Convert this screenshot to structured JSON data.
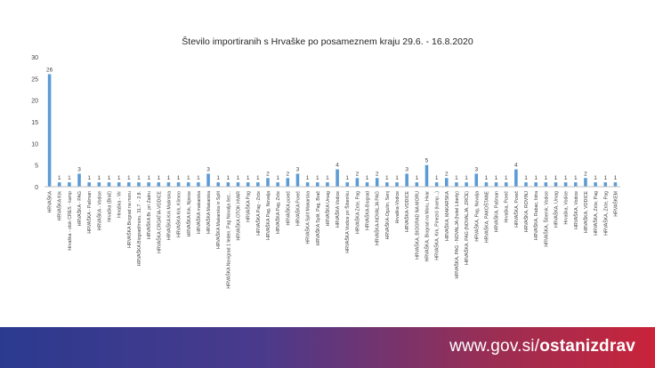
{
  "chart_data": {
    "type": "bar",
    "title": "Število importiranih s Hrvaške po posameznem kraju 29.6. - 16.8.2020",
    "xlabel": "",
    "ylabel": "",
    "ylim": [
      0,
      30
    ],
    "yticks": [
      0,
      5,
      10,
      15,
      20,
      25,
      30
    ],
    "grid": false,
    "legend": "none",
    "bar_color": "#5b9bd5",
    "categories": [
      "HRVAŠKA",
      "HRVAŠKA Krk",
      "Hrvaška - otok CRES - kamp",
      "HRVAŠKA - PAG",
      "HRVAŠKA - Pašman",
      "HRVAŠKA - Vodice",
      "Hrvaška (Brač)",
      "Hrvaška - Vir",
      "HRVAŠKA Biograd na moru",
      "HRVAŠKA Biograd/moru, 31.7. - 2.8.",
      "HRVAŠKA Br. pri Zadru",
      "HRVAŠKA CROATIA-VODICE",
      "HRVAŠKA Krk Malinska",
      "HRVAŠKA Krk, Klimno",
      "HRVAŠKA Krk, Njivice",
      "HRVAŠKA makarska",
      "HRVAŠKA Makarska",
      "HRVAŠKA Makarska in Split",
      "HRVAŠKA Novigrad 1 teden, Pag Novalja čez...",
      "HRVAŠKA OTOK HVAR",
      "HRVAŠKA Pag",
      "HRVAŠKA Pag - Zrće",
      "HRVAŠKA Pag, Novalja",
      "HRVAŠKA Pag, Zrće",
      "HRVAŠKA poreč",
      "HRVAŠKA Poreč",
      "HRVAŠKA Split Makarska",
      "HRVAŠKA Split, Pag, Brač",
      "HRVAŠKA Umag",
      "HRVAŠKA Vodice",
      "HRVAŠKA Vodice pri Šibeniku",
      "HRVAŠKA Zrće, Pag",
      "HRVAŠKA-Biograd",
      "HRVAŠKA-NOVALJA PAG",
      "HRVAŠKA-Ogulin, Senj",
      "Hrvaška-Vodice",
      "HRVAŠKA-VODICE",
      "HRVAŠKA, BIOGRAD NA MORU",
      "HRVAŠKA, Biograd na Moru, Hvar",
      "HRVAŠKA, Krk, Pinezići (kamp...)",
      "HRVAŠKA, MAKARSKA",
      "HRVAŠKA, PAG - NOVALJA (hotel Liberty)",
      "HRVAŠKA, PAG (NOVALJA, ZRĆE)",
      "HRVAŠKA, Pag, Novalja",
      "HRVAŠKA, PAKOŠTANE",
      "HRVAŠKA, Pašman",
      "Hrvaška, Poreč",
      "HRVAŠKA, Poreč",
      "HRVAŠKA, ROVINJ",
      "HRVAŠKA, Rabac, Istra",
      "HRVAŠKA, Šibenik, Vodice",
      "HRVAŠKA, Umag",
      "Hrvaška, Vodice",
      "HRVAŠKA, Vodice",
      "HRVAŠKA, VODICE",
      "HRVAŠKA, Zrće, Pag",
      "HRVAŠKA, Zrće, Pag",
      "HRVAŠKEM"
    ],
    "values": [
      26,
      1,
      1,
      3,
      1,
      1,
      1,
      1,
      1,
      1,
      1,
      1,
      1,
      1,
      1,
      1,
      3,
      1,
      1,
      1,
      1,
      1,
      2,
      1,
      2,
      3,
      1,
      1,
      1,
      4,
      1,
      2,
      1,
      2,
      1,
      1,
      3,
      1,
      5,
      1,
      2,
      1,
      1,
      3,
      1,
      1,
      1,
      4,
      1,
      1,
      1,
      1,
      1,
      1,
      2,
      1,
      1,
      1
    ]
  },
  "footer": {
    "prefix": "www.gov.si/",
    "bold": "ostanizdrav"
  }
}
